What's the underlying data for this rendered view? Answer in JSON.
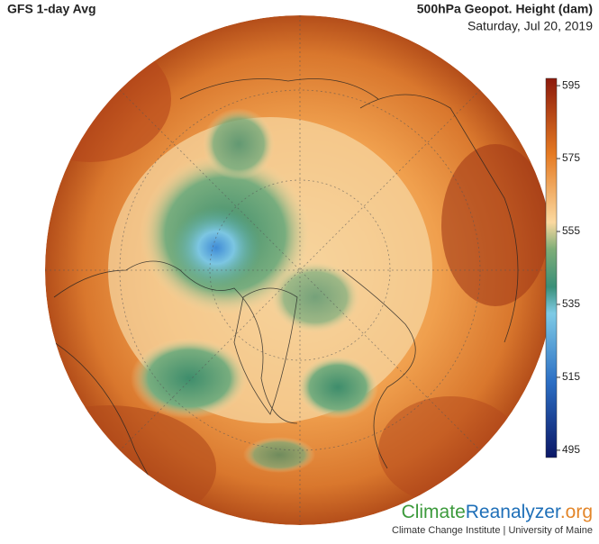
{
  "header": {
    "title": "GFS 1-day Avg",
    "variable": "500hPa Geopot. Height (dam)",
    "date": "Saturday, Jul 20, 2019"
  },
  "colorbar": {
    "range": [
      493,
      597
    ],
    "ticks": [
      595,
      575,
      555,
      535,
      515,
      495
    ]
  },
  "logo": {
    "parts": [
      "Climate",
      "Reanalyzer",
      ".org"
    ],
    "subtitle": "Climate Change Institute | University of Maine"
  }
}
